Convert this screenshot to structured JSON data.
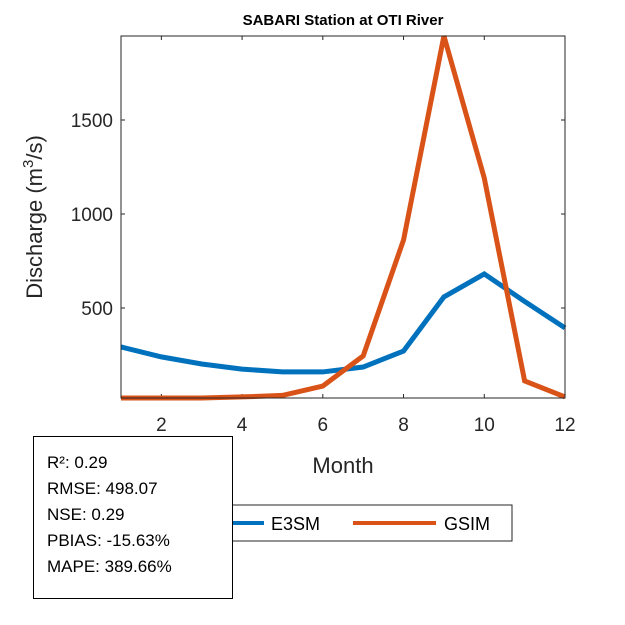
{
  "chart_data": {
    "type": "line",
    "title": "SABARI  Station at  OTI  River",
    "xlabel": "Month",
    "ylabel": "Discharge (m",
    "ylabel_sup": "3",
    "ylabel_suffix": "/s)",
    "x": [
      1,
      2,
      3,
      4,
      5,
      6,
      7,
      8,
      9,
      10,
      11,
      12
    ],
    "xlim": [
      1,
      12
    ],
    "ylim": [
      0,
      1950
    ],
    "xticks": [
      2,
      4,
      6,
      8,
      10,
      12
    ],
    "xtick_labels": [
      "2",
      "4",
      "6",
      "8",
      "10",
      "12"
    ],
    "yticks": [
      500,
      1000,
      1500
    ],
    "ytick_labels": [
      "500",
      "1000",
      "1500"
    ],
    "grid": false,
    "legend_position": "bottom-outside",
    "series": [
      {
        "name": "E3SM",
        "color": "#0072BD",
        "values": [
          293,
          240,
          202,
          175,
          160,
          160,
          186,
          271,
          559,
          681,
          535,
          394
        ]
      },
      {
        "name": "GSIM",
        "color": "#D95319",
        "values": [
          15,
          15,
          20,
          27,
          35,
          85,
          245,
          862,
          1947,
          1191,
          112,
          27
        ]
      }
    ]
  },
  "stats": {
    "lines": [
      "R²: 0.29",
      "RMSE: 498.07",
      "NSE: 0.29",
      "PBIAS: -15.63%",
      "MAPE: 389.66%"
    ]
  }
}
